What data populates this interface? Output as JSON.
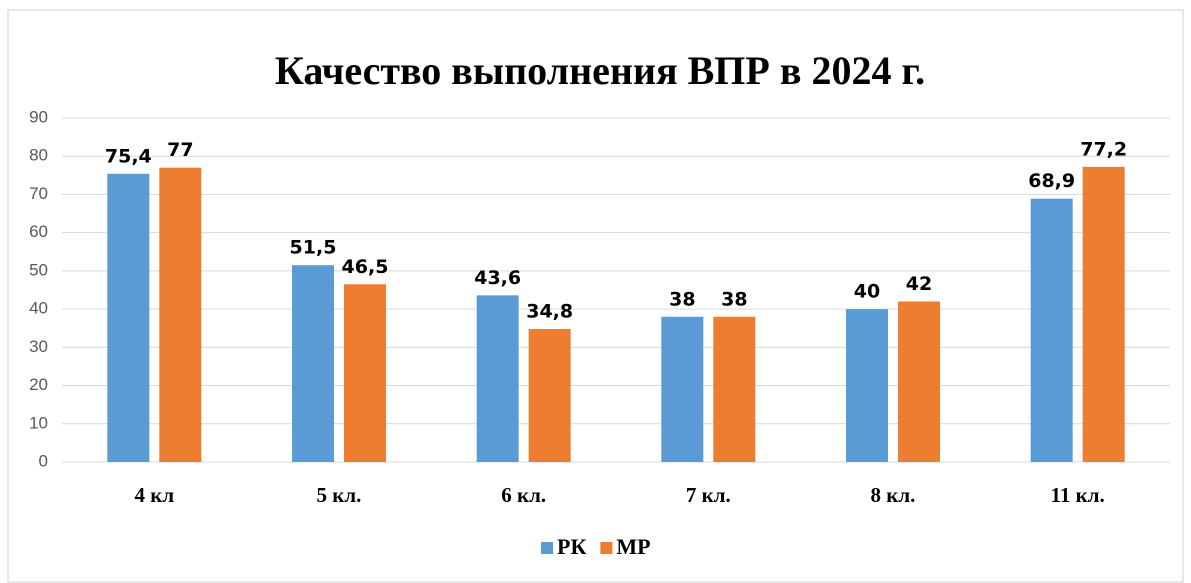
{
  "chart_data": {
    "type": "bar",
    "title": "Качество  выполнения ВПР в 2024 г.",
    "categories": [
      "4 кл",
      "5 кл.",
      "6 кл.",
      "7 кл.",
      "8 кл.",
      "11 кл."
    ],
    "series": [
      {
        "name": "РК",
        "color": "#5b9bd5",
        "values": [
          75.4,
          51.5,
          43.6,
          38,
          40,
          68.9
        ],
        "value_labels": [
          "75,4",
          "51,5",
          "43,6",
          "38",
          "40",
          "68,9"
        ]
      },
      {
        "name": "МР",
        "color": "#ed7d31",
        "values": [
          77,
          46.5,
          34.8,
          38,
          42,
          77.2
        ],
        "value_labels": [
          "77",
          "46,5",
          "34,8",
          "38",
          "42",
          "77,2"
        ]
      }
    ],
    "ylim": [
      0,
      90
    ],
    "yticks": [
      0,
      10,
      20,
      30,
      40,
      50,
      60,
      70,
      80,
      90
    ],
    "grid": true,
    "legend": "bottom"
  }
}
